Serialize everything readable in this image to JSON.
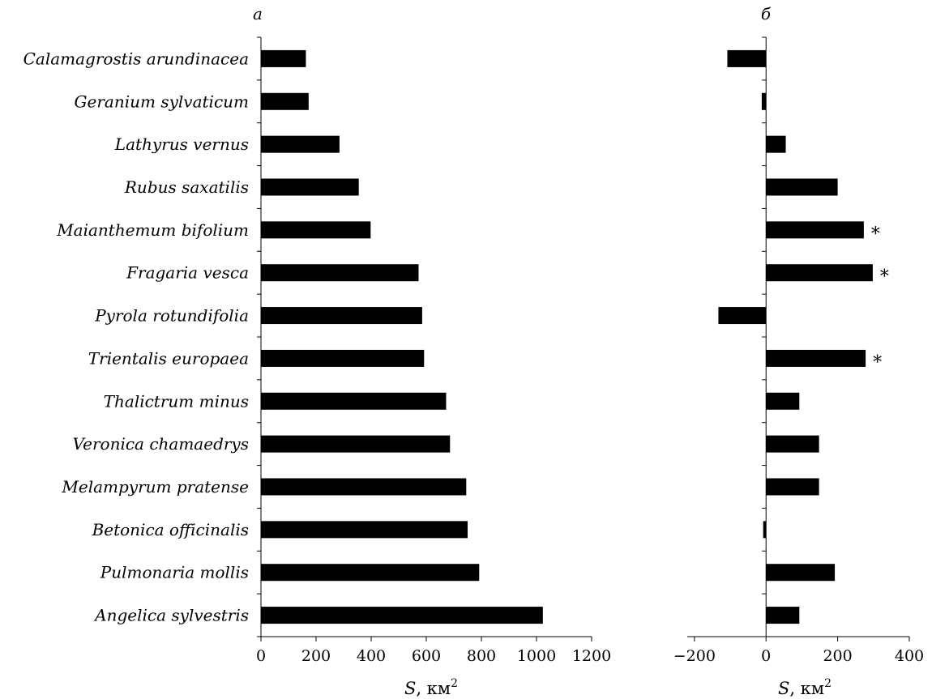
{
  "chart_data": [
    {
      "type": "bar",
      "orientation": "horizontal",
      "panel_label": "а",
      "categories": [
        "Calamagrostis arundinacea",
        "Geranium sylvaticum",
        "Lathyrus vernus",
        "Rubus saxatilis",
        "Maianthemum bifolium",
        "Fragaria vesca",
        "Pyrola rotundifolia",
        "Trientalis europaea",
        "Thalictrum minus",
        "Veronica chamaedrys",
        "Melampyrum pratense",
        "Betonica officinalis",
        "Pulmonaria mollis",
        "Angelica sylvestris"
      ],
      "values": [
        163,
        173,
        285,
        355,
        398,
        572,
        585,
        592,
        672,
        686,
        745,
        750,
        792,
        1023
      ],
      "xlim": [
        0,
        1200
      ],
      "xticks": [
        0,
        200,
        400,
        600,
        800,
        1000,
        1200
      ],
      "xlabel_var": "S",
      "xlabel_unit": ", км",
      "xlabel_sup": "2"
    },
    {
      "type": "bar",
      "orientation": "horizontal",
      "panel_label": "б",
      "categories": [
        "Calamagrostis arundinacea",
        "Geranium sylvaticum",
        "Lathyrus vernus",
        "Rubus saxatilis",
        "Maianthemum bifolium",
        "Fragaria vesca",
        "Pyrola rotundifolia",
        "Trientalis europaea",
        "Thalictrum minus",
        "Veronica chamaedrys",
        "Melampyrum pratense",
        "Betonica officinalis",
        "Pulmonaria mollis",
        "Angelica sylvestris"
      ],
      "values": [
        -108,
        -12,
        55,
        200,
        273,
        298,
        -133,
        278,
        93,
        148,
        148,
        -8,
        192,
        93
      ],
      "significant": [
        false,
        false,
        false,
        false,
        true,
        true,
        false,
        true,
        false,
        false,
        false,
        false,
        false,
        false
      ],
      "significance_marker": "*",
      "xlim": [
        -220,
        400
      ],
      "xticks": [
        -200,
        0,
        200,
        400
      ],
      "xtick_labels": [
        "−200",
        "0",
        "200",
        "400"
      ],
      "xlabel_var": "S",
      "xlabel_unit": ", км",
      "xlabel_sup": "2"
    }
  ]
}
